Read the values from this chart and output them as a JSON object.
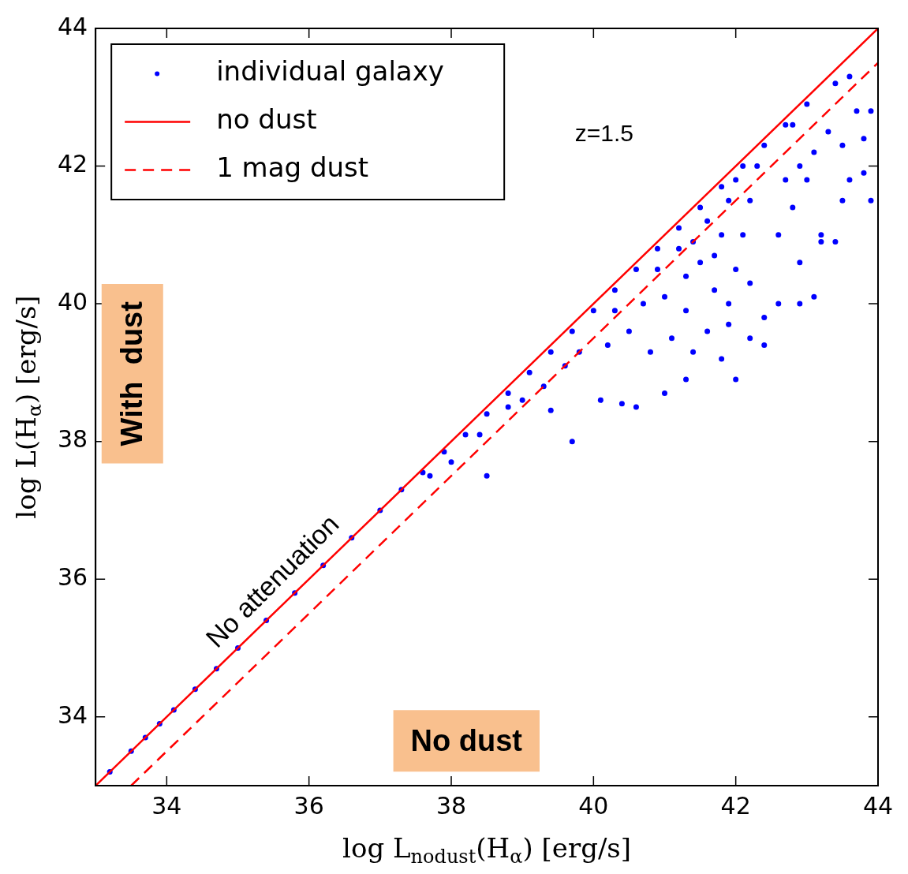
{
  "chart_data": {
    "type": "scatter",
    "xlabel": "log L$_{nodust}$(H$_{α}$) [erg/s]",
    "ylabel": "log L(H$_{α}$) [erg/s]",
    "xlim": [
      33,
      44
    ],
    "ylim": [
      33,
      44
    ],
    "xticks": [
      34,
      36,
      38,
      40,
      42,
      44
    ],
    "yticks": [
      34,
      36,
      38,
      40,
      42,
      44
    ],
    "grid": false,
    "legend": "top left",
    "annotations": [
      "z=1.5",
      "No attenuation",
      "With  dust",
      "No dust"
    ],
    "series": [
      {
        "name": "individual galaxy",
        "color": "#0000ff",
        "marker": "circle",
        "x": [
          33.2,
          33.5,
          33.7,
          33.9,
          34.1,
          34.4,
          34.7,
          35.0,
          35.4,
          35.8,
          36.2,
          36.6,
          37.0,
          37.3,
          37.6,
          37.9,
          38.2,
          38.5,
          38.8,
          39.1,
          39.4,
          39.7,
          40.0,
          40.3,
          40.6,
          40.9,
          41.2,
          41.5,
          41.8,
          42.1,
          42.4,
          42.7,
          37.7,
          38.0,
          38.4,
          38.8,
          39.0,
          39.3,
          39.6,
          39.8,
          38.5,
          39.7,
          39.4,
          40.1,
          40.6,
          40.4,
          41.0,
          41.3,
          42.0,
          41.8,
          40.2,
          40.5,
          40.8,
          41.1,
          41.4,
          41.6,
          41.9,
          42.2,
          42.4,
          40.3,
          40.7,
          41.0,
          41.3,
          42.6,
          42.4,
          41.3,
          41.5,
          41.7,
          41.9,
          42.0,
          42.1,
          42.2,
          41.8,
          41.6,
          41.4,
          41.2,
          40.9,
          42.0,
          41.9,
          42.3,
          42.2,
          41.7,
          42.6,
          42.8,
          42.9,
          43.0,
          43.2,
          43.1,
          43.3,
          43.5,
          43.6,
          43.8,
          43.7,
          43.9,
          43.4,
          43.6,
          43.9,
          42.8,
          43.0,
          42.7,
          43.2,
          43.4,
          43.1,
          42.9,
          43.5,
          43.8,
          42.9
        ],
        "values": [
          33.2,
          33.5,
          33.7,
          33.9,
          34.1,
          34.4,
          34.7,
          35.0,
          35.4,
          35.8,
          36.2,
          36.6,
          37.0,
          37.3,
          37.55,
          37.85,
          38.1,
          38.4,
          38.7,
          39.0,
          39.3,
          39.6,
          39.9,
          40.2,
          40.5,
          40.8,
          41.1,
          41.4,
          41.7,
          42.0,
          42.3,
          42.6,
          37.5,
          37.7,
          38.1,
          38.5,
          38.6,
          38.8,
          39.1,
          39.3,
          37.5,
          38.0,
          38.45,
          38.6,
          38.5,
          38.55,
          38.7,
          38.9,
          38.9,
          39.2,
          39.4,
          39.6,
          39.3,
          39.5,
          39.3,
          39.6,
          39.7,
          39.5,
          39.8,
          39.9,
          40.0,
          40.1,
          39.9,
          40.0,
          39.4,
          40.4,
          40.6,
          40.2,
          40.0,
          40.5,
          41.0,
          41.5,
          41.0,
          41.2,
          40.9,
          40.8,
          40.5,
          41.8,
          41.5,
          42.0,
          40.3,
          40.7,
          41.0,
          41.4,
          40.6,
          41.8,
          41.0,
          42.2,
          42.5,
          42.3,
          41.8,
          42.4,
          42.8,
          41.5,
          43.2,
          43.3,
          42.8,
          42.6,
          42.9,
          41.8,
          40.9,
          40.9,
          40.1,
          42.0,
          41.5,
          41.9,
          40.0
        ]
      },
      {
        "name": "no dust",
        "type": "line",
        "color": "#ff0000",
        "line_style": "solid",
        "x": [
          33,
          44
        ],
        "values": [
          33,
          44
        ]
      },
      {
        "name": "1 mag dust",
        "type": "line",
        "color": "#ff0000",
        "line_style": "dashed",
        "x": [
          33.5,
          44
        ],
        "values": [
          33,
          43.5
        ]
      }
    ]
  }
}
